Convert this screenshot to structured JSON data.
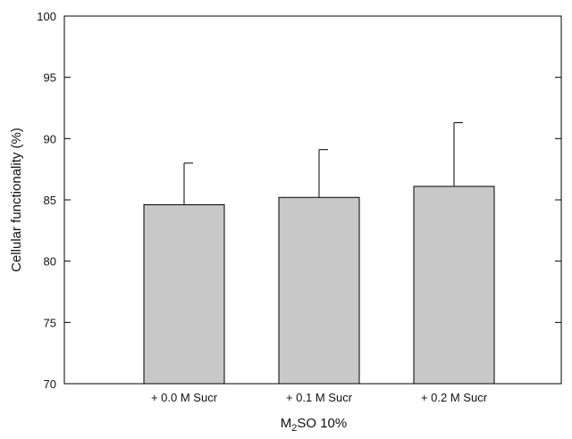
{
  "chart_data": {
    "type": "bar",
    "title": "",
    "categories": [
      "+ 0.0 M Sucr",
      "+ 0.1 M Sucr",
      "+ 0.2 M Sucr"
    ],
    "values": [
      84.6,
      85.2,
      86.1
    ],
    "error_upper": [
      3.4,
      3.9,
      5.2
    ],
    "ylabel": "Cellular functionality  (%)",
    "xlabel_parts": {
      "before_sub": "M",
      "sub": "2",
      "after_sub": "SO 10%"
    },
    "ylim": [
      70,
      100
    ],
    "yticks": [
      70,
      75,
      80,
      85,
      90,
      95,
      100
    ],
    "grid": false,
    "bar_color": "#c8c8c8",
    "edge_color": "#000000"
  }
}
